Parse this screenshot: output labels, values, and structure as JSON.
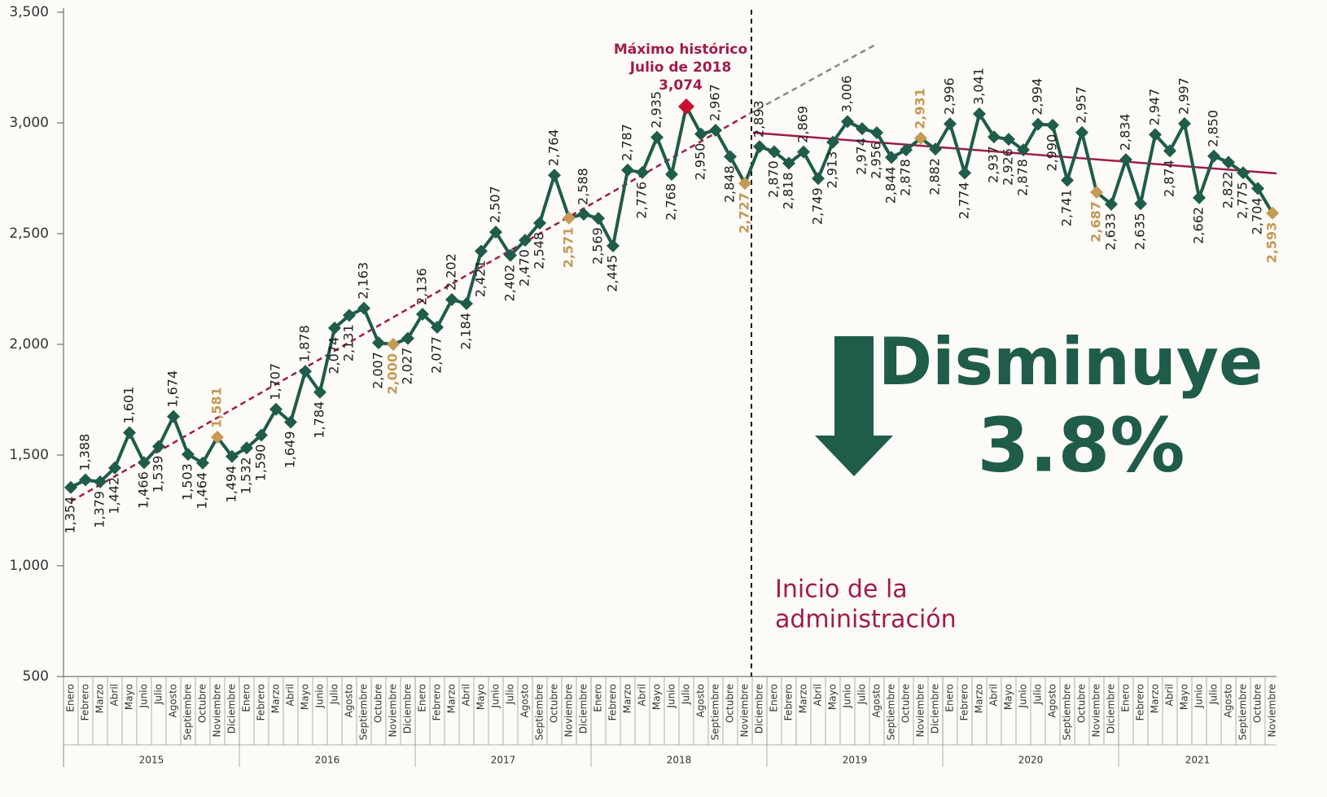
{
  "chart_data": {
    "type": "line",
    "color": "#1f5c4a",
    "highlight": {
      "color": "#c49a54",
      "indices": [
        10,
        22,
        34,
        46,
        58,
        70,
        82
      ]
    },
    "peak": {
      "color": "#c8102e",
      "index": 42
    },
    "ylim": [
      500,
      3500
    ],
    "yticks": [
      500,
      {
        "value": 1000,
        "label": "1,000"
      },
      {
        "value": 1500,
        "label": "1,500"
      },
      {
        "value": 2000,
        "label": "2,000"
      },
      {
        "value": 2500,
        "label": "2,500"
      },
      {
        "value": 3000,
        "label": "3,000"
      },
      {
        "value": 3500,
        "label": "3,500"
      }
    ],
    "categories": [
      "Enero",
      "Febrero",
      "Marzo",
      "Abril",
      "Mayo",
      "Junio",
      "Julio",
      "Agosto",
      "Septiembre",
      "Octubre",
      "Noviembre",
      "Diciembre",
      "Enero",
      "Febrero",
      "Marzo",
      "Abril",
      "Mayo",
      "Junio",
      "Julio",
      "Agosto",
      "Septiembre",
      "Octubre",
      "Noviembre",
      "Diciembre",
      "Enero",
      "Febrero",
      "Marzo",
      "Abril",
      "Mayo",
      "Junio",
      "Julio",
      "Agosto",
      "Septiembre",
      "Octubre",
      "Noviembre",
      "Diciembre",
      "Enero",
      "Febrero",
      "Marzo",
      "Abril",
      "Mayo",
      "Junio",
      "Julio",
      "Agosto",
      "Septiembre",
      "Octubre",
      "Noviembre",
      "Diciembre",
      "Enero",
      "Febrero",
      "Marzo",
      "Abril",
      "Mayo",
      "Junio",
      "Julio",
      "Agosto",
      "Septiembre",
      "Octubre",
      "Noviembre",
      "Diciembre",
      "Enero",
      "Febrero",
      "Marzo",
      "Abril",
      "Mayo",
      "Junio",
      "Julio",
      "Agosto",
      "Septiembre",
      "Octubre",
      "Noviembre",
      "Diciembre",
      "Enero",
      "Febrero",
      "Marzo",
      "Abril",
      "Mayo",
      "Junio",
      "Julio",
      "Agosto",
      "Septiembre",
      "Octubre",
      "Noviembre"
    ],
    "years": [
      "2015",
      "2016",
      "2017",
      "2018",
      "2019",
      "2020",
      "2021"
    ],
    "values": [
      1354,
      1388,
      1379,
      1442,
      1601,
      1466,
      1539,
      1674,
      1503,
      1464,
      1581,
      1494,
      1532,
      1590,
      1707,
      1649,
      1878,
      1784,
      2074,
      2131,
      2163,
      2007,
      2000,
      2027,
      2136,
      2077,
      2202,
      2184,
      2421,
      2507,
      2402,
      2470,
      2548,
      2764,
      2571,
      2588,
      2569,
      2445,
      2787,
      2776,
      2935,
      2768,
      3074,
      2950,
      2967,
      2848,
      2727,
      2893,
      2870,
      2818,
      2869,
      2749,
      2913,
      3006,
      2974,
      2956,
      2844,
      2878,
      2931,
      2882,
      2996,
      2774,
      3041,
      2937,
      2926,
      2878,
      2994,
      2990,
      2741,
      2957,
      2687,
      2633,
      2834,
      2635,
      2947,
      2874,
      2997,
      2662,
      2850,
      2822,
      2775,
      2704,
      2593
    ],
    "value_labels": [
      "1,354",
      "1,388",
      "1,379",
      "1,442",
      "1,601",
      "1,466",
      "1,539",
      "1,674",
      "1,503",
      "1,464",
      "1,581",
      "1,494",
      "1,532",
      "1,590",
      "1,707",
      "1,649",
      "1,878",
      "1,784",
      "2,074",
      "2,131",
      "2,163",
      "2,007",
      "2,000",
      "2,027",
      "2,136",
      "2,077",
      "2,202",
      "2,184",
      "2,421",
      "2,507",
      "2,402",
      "2,470",
      "2,548",
      "2,764",
      "2,571",
      "2,588",
      "2,569",
      "2,445",
      "2,787",
      "2,776",
      "2,935",
      "2,768",
      "3,074",
      "2,950",
      "2,967",
      "2,848",
      "2,727",
      "2,893",
      "2,870",
      "2,818",
      "2,869",
      "2,749",
      "2,913",
      "3,006",
      "2,974",
      "2,956",
      "2,844",
      "2,878",
      "2,931",
      "2,882",
      "2,996",
      "2,774",
      "3,041",
      "2,937",
      "2,926",
      "2,878",
      "2,994",
      "2,990",
      "2,741",
      "2,957",
      "2,687",
      "2,633",
      "2,834",
      "2,635",
      "2,947",
      "2,874",
      "2,997",
      "2,662",
      "2,850",
      "2,822",
      "2,775",
      "2,704",
      "2,593"
    ],
    "annotations": {
      "peak_title": "Máximo histórico",
      "peak_date": "Julio de 2018",
      "start_line1": "Inicio de la",
      "start_line2": "administración",
      "headline": "Disminuye",
      "change": "3.8%"
    }
  }
}
